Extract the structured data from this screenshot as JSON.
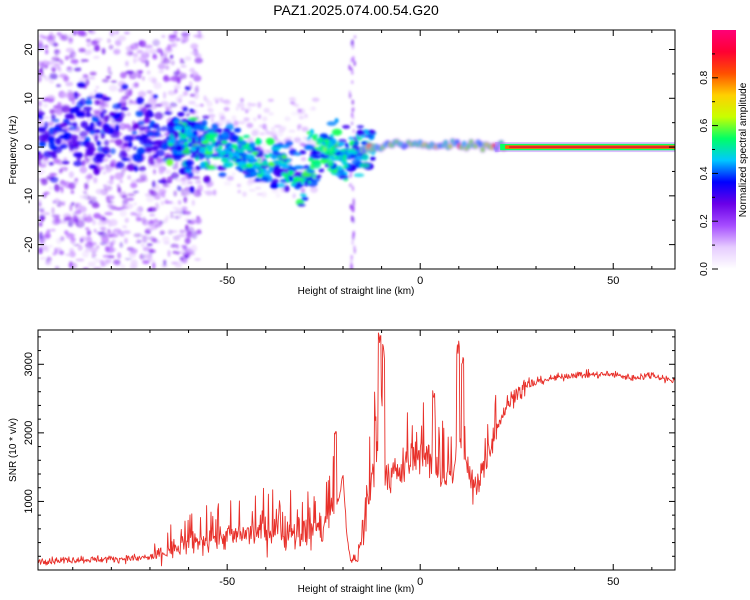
{
  "figure": {
    "title": "PAZ1.2025.074.00.54.G20"
  },
  "colors": {
    "snr_line": "#e8302a",
    "hot_band": "#e8202a",
    "axis": "#000000"
  },
  "chart_data": [
    {
      "type": "heatmap",
      "xlabel": "Height of straight line (km)",
      "ylabel": "Frequency (Hz)",
      "xlim": [
        -99,
        66
      ],
      "ylim": [
        -25,
        24
      ],
      "xticks": [
        {
          "value": -50,
          "label": "-50"
        },
        {
          "value": 0,
          "label": "0"
        },
        {
          "value": 50,
          "label": "50"
        }
      ],
      "yticks": [
        {
          "value": -20,
          "label": "-20"
        },
        {
          "value": -10,
          "label": "-10"
        },
        {
          "value": 0,
          "label": "0"
        },
        {
          "value": 10,
          "label": "10"
        },
        {
          "value": 20,
          "label": "20"
        }
      ],
      "colorbar": {
        "label": "Normalized spectral amplitude",
        "range": [
          0,
          1
        ],
        "ticks": [
          {
            "value": 0.0,
            "label": "0.0"
          },
          {
            "value": 0.2,
            "label": "0.2"
          },
          {
            "value": 0.4,
            "label": "0.4"
          },
          {
            "value": 0.6,
            "label": "0.6"
          },
          {
            "value": 0.8,
            "label": "0.8"
          }
        ],
        "colormap": [
          "#ffffff",
          "#e6ccff",
          "#a64dff",
          "#6a00e8",
          "#0000ff",
          "#00c8ff",
          "#00ff66",
          "#c8ff00",
          "#ffd000",
          "#ff5000",
          "#ff0033",
          "#ff0077"
        ]
      },
      "ridge": [
        {
          "x": -99,
          "f": 3
        },
        {
          "x": -80,
          "f": 3
        },
        {
          "x": -65,
          "f": 2
        },
        {
          "x": -55,
          "f": 0
        },
        {
          "x": -45,
          "f": -2
        },
        {
          "x": -35,
          "f": -4
        },
        {
          "x": -30,
          "f": -7
        },
        {
          "x": -25,
          "f": 0
        },
        {
          "x": -20,
          "f": -2
        },
        {
          "x": -15,
          "f": 0
        },
        {
          "x": 0,
          "f": 0.5
        },
        {
          "x": 20,
          "f": 0.2
        },
        {
          "x": 66,
          "f": 0
        }
      ]
    },
    {
      "type": "line",
      "xlabel": "Height of straight line (km)",
      "ylabel": "SNR (10 * v/v)",
      "xlim": [
        -99,
        66
      ],
      "ylim": [
        0,
        3500
      ],
      "xticks": [
        {
          "value": -50,
          "label": "-50"
        },
        {
          "value": 0,
          "label": "0"
        },
        {
          "value": 50,
          "label": "50"
        }
      ],
      "yticks": [
        {
          "value": 1000,
          "label": "1000"
        },
        {
          "value": 2000,
          "label": "2000"
        },
        {
          "value": 3000,
          "label": "3000"
        }
      ],
      "series": [
        {
          "x": [
            -99,
            -90,
            -80,
            -70,
            -65,
            -60,
            -55,
            -50,
            -45,
            -40,
            -35,
            -30,
            -25,
            -21,
            -20,
            -19,
            -18,
            -16,
            -15,
            -13,
            -12,
            -11,
            -10,
            -9,
            -8,
            -6,
            -4,
            -2,
            0,
            2,
            4,
            6,
            8,
            10,
            12,
            14,
            16,
            18,
            20,
            22,
            25,
            30,
            35,
            40,
            45,
            50,
            55,
            60,
            66
          ],
          "y": [
            130,
            150,
            160,
            180,
            280,
            380,
            450,
            500,
            530,
            560,
            560,
            580,
            600,
            1050,
            1400,
            500,
            120,
            150,
            600,
            1100,
            1500,
            1800,
            2000,
            1500,
            1400,
            1400,
            1500,
            1600,
            1700,
            1600,
            1500,
            1400,
            1300,
            1700,
            1500,
            1200,
            1500,
            1800,
            2100,
            2350,
            2600,
            2750,
            2800,
            2850,
            2850,
            2850,
            2800,
            2850,
            2750
          ],
          "spikes": [
            {
              "x": -10.5,
              "y": 3500
            },
            {
              "x": -9.5,
              "y": 3300
            },
            {
              "x": 9.8,
              "y": 3350
            },
            {
              "x": 11,
              "y": 3200
            },
            {
              "x": 3.5,
              "y": 2650
            },
            {
              "x": -22,
              "y": 2050
            }
          ]
        }
      ]
    }
  ]
}
